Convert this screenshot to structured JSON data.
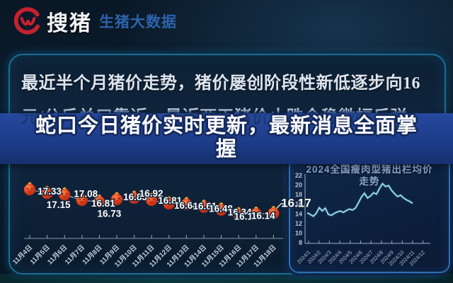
{
  "header": {
    "logo_text": "搜猪",
    "logo_subtitle": "生猪大数据"
  },
  "banner": {
    "line1": "最近半个月猪价走势，猪价屡创阶段性新低逐步向16",
    "line2": "元/公斤关口靠近，最近两天猪价止跌企稳微幅反弹。"
  },
  "headline": {
    "line1": "蛇口今日猪价实时更新，最新消息全面掌",
    "line2": "握"
  },
  "right_panel": {
    "title_line1": "2024全国瘦肉型猪出栏均价",
    "title_line2": "走势"
  },
  "colors": {
    "accent_red": "#c6212e",
    "logo_blue": "#2d63ab",
    "band_blue": "#1f4296",
    "trend_cyan": "#9fdbee",
    "marker_orange": "#e2401f"
  },
  "chart_data": [
    {
      "type": "line",
      "title": "最近半个月猪价走势",
      "categories": [
        "11月4日",
        "11月5日",
        "11月6日",
        "11月7日",
        "11月8日",
        "11月9日",
        "11月10日",
        "11月11日",
        "11月12日",
        "11月13日",
        "11月14日",
        "11月15日",
        "11月16日",
        "11月17日",
        "11月18日"
      ],
      "values": [
        17.33,
        17.15,
        17.08,
        16.81,
        16.73,
        16.85,
        16.92,
        16.81,
        16.64,
        16.61,
        16.48,
        16.34,
        16.11,
        16.14,
        16.17
      ],
      "label_below_indices": [
        1,
        4
      ],
      "grid": false,
      "legend": false
    },
    {
      "type": "line",
      "title": "2024全国瘦肉型猪出栏均价走势",
      "ylim": [
        8,
        22
      ],
      "yticks": [
        22,
        20,
        18,
        16,
        14,
        12,
        10,
        8
      ],
      "xticks": [
        "2024/1",
        "2024/2",
        "2024/3",
        "2024/4",
        "2024/5",
        "2024/6",
        "2024/7",
        "2024/8",
        "2024/9",
        "2024/10",
        "2024/11",
        "2024/12"
      ],
      "values": [
        14.2,
        13.9,
        13.5,
        14.1,
        15.3,
        14.6,
        15.2,
        13.9,
        13.7,
        14.1,
        14.4,
        14.6,
        14.3,
        14.7,
        15.0,
        14.8,
        15.2,
        16.3,
        17.5,
        18.3,
        17.3,
        17.7,
        18.4,
        18.1,
        19.3,
        20.3,
        19.7,
        19.9,
        18.9,
        18.2,
        17.6,
        17.9,
        17.3,
        16.9,
        16.6,
        16.2
      ],
      "grid": false,
      "legend": false
    }
  ]
}
